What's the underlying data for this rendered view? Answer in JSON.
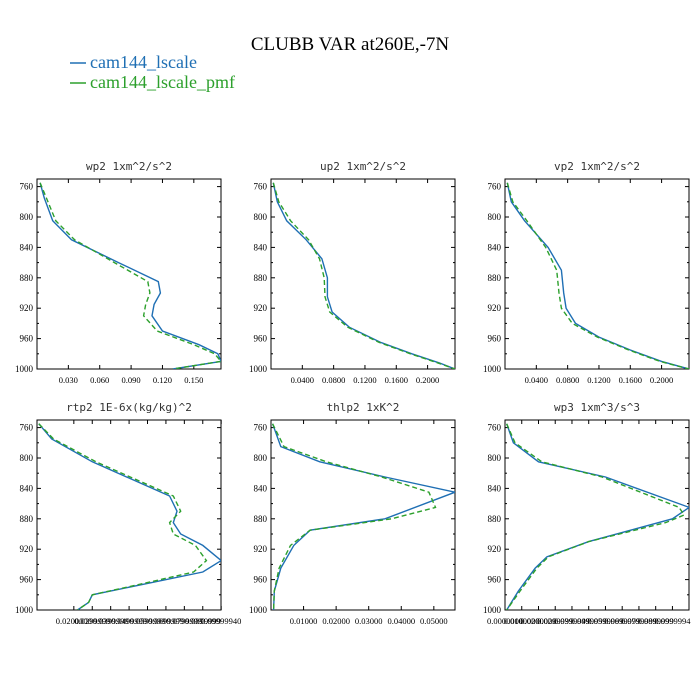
{
  "figure": {
    "title": "CLUBB VAR at260E,-7N",
    "legend": [
      {
        "label": "cam144_lscale",
        "color": "#1f6fb4",
        "dash": "solid"
      },
      {
        "label": "cam144_lscale_pmf",
        "color": "#2ca02c",
        "dash": "dashed"
      }
    ]
  },
  "chart_data": [
    {
      "type": "line",
      "title": "wp2  1xm^2/s^2",
      "ylim": [
        1000,
        750
      ],
      "yticks": [
        760,
        800,
        840,
        880,
        920,
        960,
        1000
      ],
      "xlim": [
        0.0,
        0.176
      ],
      "xticks": [
        0.03,
        0.06,
        0.09,
        0.12,
        0.15
      ],
      "xtick_labels": [
        "0.030",
        "0.060",
        "0.090",
        "0.120",
        "0.150"
      ],
      "series": [
        {
          "name": "cam144_lscale",
          "x": [
            0.003,
            0.007,
            0.015,
            0.033,
            0.078,
            0.116,
            0.118,
            0.112,
            0.11,
            0.12,
            0.155,
            0.173,
            0.176,
            0.13
          ],
          "y": [
            755,
            775,
            805,
            830,
            860,
            885,
            900,
            915,
            930,
            950,
            968,
            980,
            990,
            1000
          ]
        },
        {
          "name": "cam144_lscale_pmf",
          "x": [
            0.003,
            0.009,
            0.018,
            0.036,
            0.074,
            0.106,
            0.108,
            0.104,
            0.102,
            0.115,
            0.15,
            0.17,
            0.176,
            0.13
          ],
          "y": [
            755,
            775,
            805,
            830,
            860,
            885,
            900,
            915,
            930,
            950,
            968,
            980,
            990,
            1000
          ]
        }
      ]
    },
    {
      "type": "line",
      "title": "up2  1xm^2/s^2",
      "ylim": [
        1000,
        750
      ],
      "yticks": [
        760,
        800,
        840,
        880,
        920,
        960,
        1000
      ],
      "xlim": [
        0.0,
        0.235
      ],
      "xticks": [
        0.04,
        0.08,
        0.12,
        0.16,
        0.2
      ],
      "xtick_labels": [
        "0.0400",
        "0.0800",
        "0.1200",
        "0.1600",
        "0.2000"
      ],
      "series": [
        {
          "name": "cam144_lscale",
          "x": [
            0.003,
            0.008,
            0.02,
            0.045,
            0.065,
            0.072,
            0.072,
            0.078,
            0.1,
            0.14,
            0.18,
            0.215,
            0.235
          ],
          "y": [
            755,
            780,
            805,
            830,
            855,
            880,
            905,
            925,
            945,
            965,
            980,
            992,
            1000
          ]
        },
        {
          "name": "cam144_lscale_pmf",
          "x": [
            0.003,
            0.01,
            0.025,
            0.048,
            0.062,
            0.068,
            0.069,
            0.075,
            0.098,
            0.138,
            0.178,
            0.213,
            0.235
          ],
          "y": [
            755,
            780,
            805,
            830,
            855,
            880,
            905,
            925,
            945,
            965,
            980,
            992,
            1000
          ]
        }
      ]
    },
    {
      "type": "line",
      "title": "vp2  1xm^2/s^2",
      "ylim": [
        1000,
        750
      ],
      "yticks": [
        760,
        800,
        840,
        880,
        920,
        960,
        1000
      ],
      "xlim": [
        0.0,
        0.235
      ],
      "xticks": [
        0.04,
        0.08,
        0.12,
        0.16,
        0.2
      ],
      "xtick_labels": [
        "0.0400",
        "0.0800",
        "0.1200",
        "0.1600",
        "0.2000"
      ],
      "series": [
        {
          "name": "cam144_lscale",
          "x": [
            0.003,
            0.008,
            0.025,
            0.055,
            0.072,
            0.075,
            0.078,
            0.09,
            0.12,
            0.16,
            0.2,
            0.235
          ],
          "y": [
            755,
            780,
            805,
            840,
            870,
            900,
            920,
            940,
            958,
            975,
            990,
            1000
          ]
        },
        {
          "name": "cam144_lscale_pmf",
          "x": [
            0.003,
            0.01,
            0.028,
            0.052,
            0.066,
            0.069,
            0.072,
            0.086,
            0.118,
            0.158,
            0.198,
            0.235
          ],
          "y": [
            755,
            780,
            805,
            840,
            870,
            900,
            920,
            940,
            958,
            975,
            990,
            1000
          ]
        }
      ]
    },
    {
      "type": "line",
      "title": "rtp2  1E-6x(kg/kg)^2",
      "ylim": [
        1000,
        750
      ],
      "yticks": [
        760,
        800,
        840,
        880,
        920,
        960,
        1000
      ],
      "xlim": [
        0.0,
        0.0999
      ],
      "xticks": [
        0.02,
        0.03,
        0.04,
        0.05,
        0.06,
        0.07,
        0.08,
        0.09,
        0.1
      ],
      "xtick_labels": [
        "0.0200000",
        "0.0299999",
        "0.0399999",
        "0.0499999",
        "0.0599999",
        "0.0699999",
        "0.0799999",
        "0.0899999",
        "0.09999940"
      ],
      "series": [
        {
          "name": "cam144_lscale",
          "x": [
            0.001,
            0.008,
            0.03,
            0.072,
            0.076,
            0.074,
            0.078,
            0.09,
            0.1,
            0.09,
            0.06,
            0.03,
            0.028,
            0.022
          ],
          "y": [
            755,
            775,
            805,
            850,
            870,
            885,
            900,
            915,
            935,
            950,
            965,
            980,
            990,
            1000
          ]
        },
        {
          "name": "cam144_lscale_pmf",
          "x": [
            0.001,
            0.009,
            0.032,
            0.074,
            0.078,
            0.072,
            0.074,
            0.086,
            0.092,
            0.085,
            0.058,
            0.03,
            0.028,
            0.022
          ],
          "y": [
            755,
            775,
            805,
            850,
            870,
            885,
            900,
            915,
            935,
            950,
            965,
            980,
            990,
            1000
          ]
        }
      ]
    },
    {
      "type": "line",
      "title": "thlp2  1xK^2",
      "ylim": [
        1000,
        750
      ],
      "yticks": [
        760,
        800,
        840,
        880,
        920,
        960,
        1000
      ],
      "xlim": [
        0.0,
        0.0565
      ],
      "xticks": [
        0.01,
        0.02,
        0.03,
        0.04,
        0.05
      ],
      "xtick_labels": [
        "0.01000",
        "0.02000",
        "0.03000",
        "0.04000",
        "0.05000"
      ],
      "series": [
        {
          "name": "cam144_lscale",
          "x": [
            0.0005,
            0.003,
            0.015,
            0.035,
            0.0565,
            0.035,
            0.012,
            0.007,
            0.003,
            0.001,
            0.0008
          ],
          "y": [
            755,
            785,
            805,
            825,
            845,
            880,
            895,
            915,
            945,
            975,
            1000
          ]
        },
        {
          "name": "cam144_lscale_pmf",
          "x": [
            0.0005,
            0.004,
            0.017,
            0.034,
            0.0485,
            0.0505,
            0.037,
            0.012,
            0.006,
            0.0025,
            0.001,
            0.0008
          ],
          "y": [
            755,
            785,
            805,
            825,
            845,
            865,
            880,
            895,
            915,
            945,
            975,
            1000
          ]
        }
      ]
    },
    {
      "type": "line",
      "title": "wp3  1xm^3/s^3",
      "ylim": [
        1000,
        750
      ],
      "yticks": [
        760,
        800,
        840,
        880,
        920,
        960,
        1000
      ],
      "xlim": [
        0.0,
        0.1099
      ],
      "xticks": [
        0.0,
        0.01,
        0.02,
        0.03,
        0.04,
        0.05,
        0.06,
        0.07,
        0.08,
        0.09,
        0.1
      ],
      "xtick_labels": [
        "0.0000000",
        "0.0100000",
        "0.0200000",
        "0.0299999",
        "0.0399999",
        "0.0499999",
        "0.0599999",
        "0.0699999",
        "0.0799999",
        "0.0899999",
        "0.0999994"
      ],
      "series": [
        {
          "name": "cam144_lscale",
          "x": [
            0.001,
            0.005,
            0.02,
            0.06,
            0.11,
            0.1,
            0.05,
            0.025,
            0.018,
            0.008,
            0.001
          ],
          "y": [
            755,
            780,
            805,
            825,
            865,
            880,
            910,
            930,
            945,
            975,
            1000
          ]
        },
        {
          "name": "cam144_lscale_pmf",
          "x": [
            0.001,
            0.006,
            0.022,
            0.058,
            0.104,
            0.107,
            0.096,
            0.05,
            0.026,
            0.019,
            0.009,
            0.001
          ],
          "y": [
            755,
            780,
            805,
            825,
            865,
            875,
            885,
            910,
            930,
            945,
            975,
            1000
          ]
        }
      ]
    }
  ]
}
